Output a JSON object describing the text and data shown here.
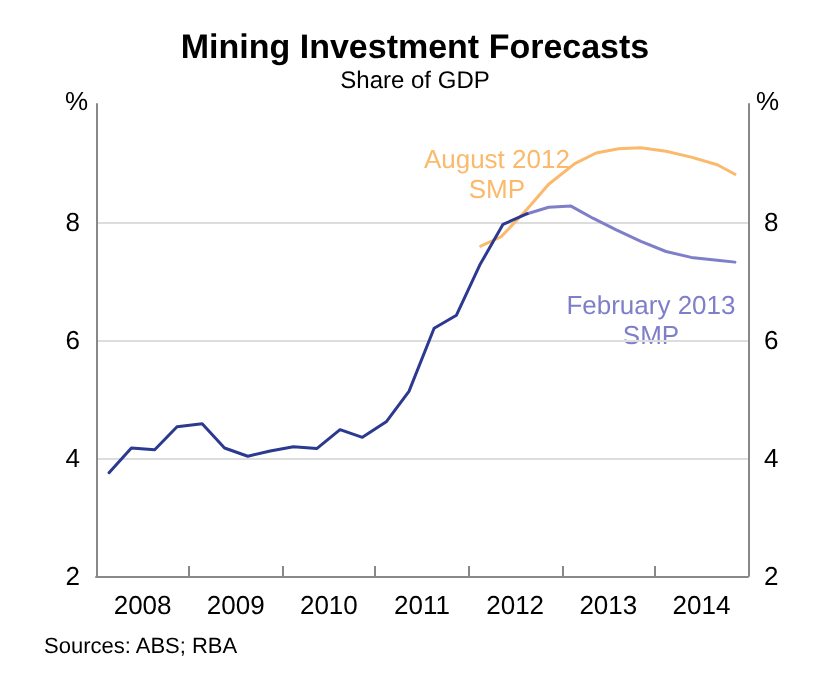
{
  "chart_data": {
    "type": "line",
    "title": "Mining Investment Forecasts",
    "subtitle": "Share of GDP",
    "ylabel": "%",
    "y2label": "%",
    "annotations": [
      "Sources: ABS; RBA"
    ],
    "xlim": [
      2008,
      2015
    ],
    "xticks": [
      {
        "value": 2009,
        "label": null
      },
      {
        "value": 2010,
        "label": null
      },
      {
        "value": 2011,
        "label": null
      },
      {
        "value": 2012,
        "label": null
      },
      {
        "value": 2013,
        "label": null
      },
      {
        "value": 2014,
        "label": null
      },
      {
        "value": 2008.5,
        "label": "2008"
      },
      {
        "value": 2009.5,
        "label": "2009"
      },
      {
        "value": 2010.5,
        "label": "2010"
      },
      {
        "value": 2011.5,
        "label": "2011"
      },
      {
        "value": 2012.5,
        "label": "2012"
      },
      {
        "value": 2013.5,
        "label": "2013"
      },
      {
        "value": 2014.5,
        "label": "2014"
      }
    ],
    "ylim": [
      2,
      10
    ],
    "yticks": [
      2,
      4,
      6,
      8
    ],
    "y2lim": [
      2,
      10
    ],
    "y2ticks": [
      2,
      4,
      6,
      8
    ],
    "grid": "y",
    "legend": false,
    "marker": "none",
    "line_style": "solid",
    "series": [
      {
        "color": "#2b3990",
        "x": [
          2008.14,
          2008.38,
          2008.63,
          2008.87,
          2009.14,
          2009.38,
          2009.63,
          2009.87,
          2010.12,
          2010.37,
          2010.62,
          2010.86,
          2011.12,
          2011.36,
          2011.63,
          2011.87,
          2012.12,
          2012.37,
          2012.63
        ],
        "values": [
          3.75,
          4.17,
          4.14,
          4.53,
          4.58,
          4.17,
          4.03,
          4.12,
          4.19,
          4.16,
          4.48,
          4.35,
          4.62,
          5.13,
          6.2,
          6.42,
          7.27,
          7.96,
          8.14
        ]
      },
      {
        "name": "August 2012\nSMP",
        "color": "#fbb96b",
        "x": [
          2012.13,
          2012.35,
          2012.63,
          2012.86,
          2013.14,
          2013.37,
          2013.61,
          2013.85,
          2014.12,
          2014.39,
          2014.67,
          2014.86
        ],
        "values": [
          7.59,
          7.75,
          8.22,
          8.64,
          8.99,
          9.17,
          9.24,
          9.26,
          9.2,
          9.1,
          8.97,
          8.81
        ]
      },
      {
        "name": "February 2013\nSMP",
        "color": "#7e7fc8",
        "x": [
          2012.63,
          2012.86,
          2013.1,
          2013.34,
          2013.58,
          2013.85,
          2014.12,
          2014.39,
          2014.67,
          2014.86
        ],
        "values": [
          8.14,
          8.25,
          8.27,
          8.06,
          7.87,
          7.67,
          7.5,
          7.4,
          7.35,
          7.32
        ]
      }
    ]
  }
}
